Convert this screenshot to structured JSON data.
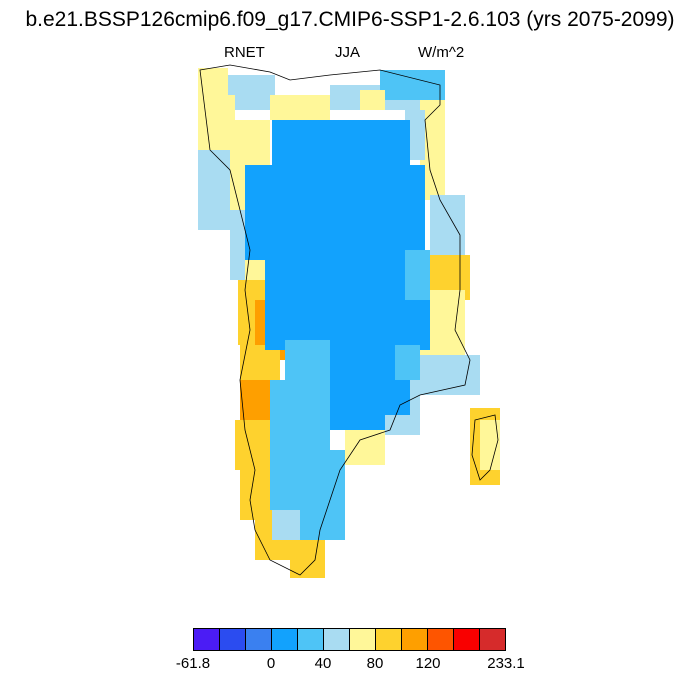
{
  "title": "b.e21.BSSP126cmip6.f09_g17.CMIP6-SSP1-2.6.103 (yrs 2075-2099)",
  "left_label": "RNET",
  "center_label": "JJA",
  "right_label": "W/m^2",
  "colorbar": {
    "colors": [
      "#4b1cf5",
      "#2b4cf0",
      "#3a80f0",
      "#12a2fd",
      "#4ec4f6",
      "#a9dcf2",
      "#fff799",
      "#fed22e",
      "#fe9f00",
      "#fe5500",
      "#f90000",
      "#d62b2b"
    ],
    "tick_labels": [
      "-61.8",
      "0",
      "40",
      "80",
      "120",
      "233.1"
    ]
  },
  "chart_data": {
    "type": "heatmap",
    "variable": "RNET",
    "season": "JJA",
    "units": "W/m^2",
    "colorbar_range": [
      -61.8,
      233.1
    ],
    "tick_values": [
      -61.8,
      0,
      40,
      80,
      120,
      233.1
    ]
  }
}
